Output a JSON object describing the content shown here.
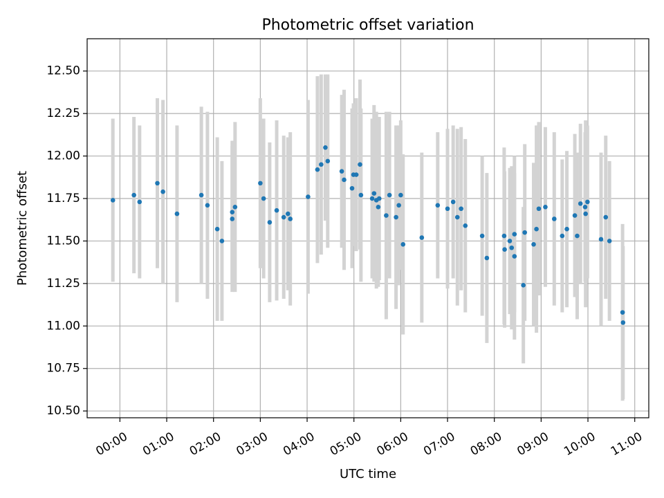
{
  "chart_data": {
    "type": "scatter",
    "title": "Photometric offset variation",
    "xlabel": "UTC time",
    "ylabel": "Photometric offset",
    "x_unit": "hours (UTC)",
    "xlim": [
      -0.7,
      11.3
    ],
    "ylim": [
      10.46,
      12.69
    ],
    "x_ticks": [
      {
        "value": 0,
        "label": "00:00"
      },
      {
        "value": 1,
        "label": "01:00"
      },
      {
        "value": 2,
        "label": "02:00"
      },
      {
        "value": 3,
        "label": "03:00"
      },
      {
        "value": 4,
        "label": "04:00"
      },
      {
        "value": 5,
        "label": "05:00"
      },
      {
        "value": 6,
        "label": "06:00"
      },
      {
        "value": 7,
        "label": "07:00"
      },
      {
        "value": 8,
        "label": "08:00"
      },
      {
        "value": 9,
        "label": "09:00"
      },
      {
        "value": 10,
        "label": "10:00"
      },
      {
        "value": 11,
        "label": "11:00"
      }
    ],
    "y_ticks": [
      {
        "value": 10.5,
        "label": "10.50"
      },
      {
        "value": 10.75,
        "label": "10.75"
      },
      {
        "value": 11.0,
        "label": "11.00"
      },
      {
        "value": 11.25,
        "label": "11.25"
      },
      {
        "value": 11.5,
        "label": "11.50"
      },
      {
        "value": 11.75,
        "label": "11.75"
      },
      {
        "value": 12.0,
        "label": "12.00"
      },
      {
        "value": 12.25,
        "label": "12.25"
      },
      {
        "value": 12.5,
        "label": "12.50"
      }
    ],
    "grid": true,
    "colors": {
      "points": "#1f77b4",
      "errorbars": "#d3d3d3",
      "grid": "#b0b0b0"
    },
    "series": [
      {
        "x": [
          -0.15,
          0.3,
          0.42,
          0.8,
          0.92,
          1.22,
          1.74,
          1.87,
          2.08,
          2.18,
          2.4,
          2.4,
          2.46,
          3.0,
          3.07,
          3.2,
          3.35,
          3.5,
          3.59,
          3.64,
          4.02,
          4.22,
          4.3,
          4.39,
          4.44,
          4.74,
          4.79,
          4.96,
          4.99,
          5.05,
          5.13,
          5.15,
          5.39,
          5.43,
          5.48,
          5.52,
          5.54,
          5.69,
          5.76,
          5.9,
          5.96,
          6.0,
          6.05,
          6.45,
          6.79,
          7.0,
          7.12,
          7.21,
          7.29,
          7.38,
          7.74,
          7.84,
          8.21,
          8.22,
          8.33,
          8.37,
          8.43,
          8.43,
          8.62,
          8.65,
          8.84,
          8.9,
          8.95,
          9.09,
          9.28,
          9.45,
          9.55,
          9.72,
          9.77,
          9.84,
          9.94,
          9.95,
          9.99,
          10.28,
          10.38,
          10.46,
          10.74,
          10.75
        ],
        "y": [
          11.74,
          11.77,
          11.73,
          11.84,
          11.79,
          11.66,
          11.77,
          11.71,
          11.57,
          11.5,
          11.67,
          11.63,
          11.7,
          11.84,
          11.75,
          11.61,
          11.68,
          11.64,
          11.66,
          11.63,
          11.76,
          11.92,
          11.95,
          12.05,
          11.97,
          11.91,
          11.86,
          11.81,
          11.89,
          11.89,
          11.95,
          11.77,
          11.75,
          11.78,
          11.74,
          11.7,
          11.75,
          11.65,
          11.77,
          11.64,
          11.71,
          11.77,
          11.48,
          11.52,
          11.71,
          11.69,
          11.73,
          11.64,
          11.69,
          11.59,
          11.53,
          11.4,
          11.53,
          11.45,
          11.5,
          11.46,
          11.54,
          11.41,
          11.24,
          11.55,
          11.48,
          11.57,
          11.69,
          11.7,
          11.63,
          11.53,
          11.57,
          11.65,
          11.53,
          11.72,
          11.7,
          11.66,
          11.73,
          11.51,
          11.64,
          11.5,
          11.08,
          11.02
        ],
        "err": [
          0.48,
          0.46,
          0.45,
          0.5,
          0.54,
          0.52,
          0.52,
          0.55,
          0.54,
          0.47,
          0.42,
          0.43,
          0.5,
          0.5,
          0.47,
          0.47,
          0.53,
          0.48,
          0.45,
          0.51,
          0.57,
          0.55,
          0.53,
          0.43,
          0.51,
          0.45,
          0.53,
          0.47,
          0.42,
          0.45,
          0.5,
          0.51,
          0.47,
          0.52,
          0.52,
          0.47,
          0.48,
          0.61,
          0.49,
          0.54,
          0.47,
          0.44,
          0.53,
          0.5,
          0.43,
          0.47,
          0.45,
          0.52,
          0.48,
          0.51,
          0.47,
          0.5,
          0.52,
          0.46,
          0.43,
          0.48,
          0.46,
          0.49,
          0.46,
          0.52,
          0.48,
          0.61,
          0.51,
          0.47,
          0.51,
          0.45,
          0.46,
          0.48,
          0.49,
          0.47,
          0.44,
          0.55,
          0.45,
          0.51,
          0.48,
          0.47,
          0.52,
          0.45
        ]
      }
    ]
  }
}
